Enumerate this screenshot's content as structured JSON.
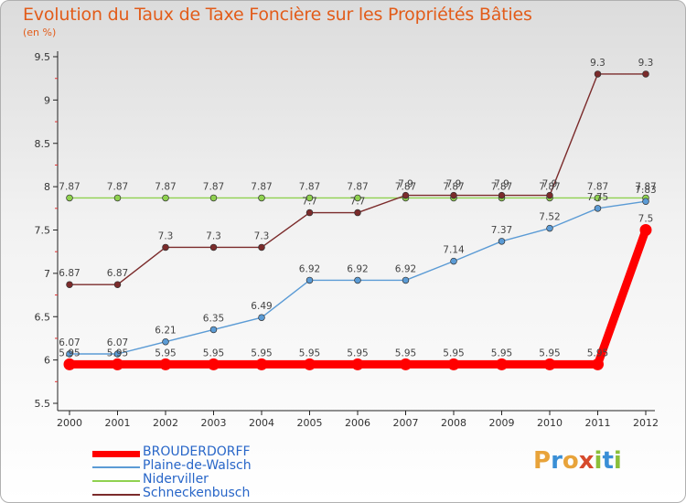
{
  "title": "Evolution du Taux de Taxe Foncière sur les Propriétés Bâties",
  "subtitle": "(en %)",
  "logo": {
    "letters": [
      "P",
      "r",
      "o",
      "x",
      "i",
      "t",
      "i"
    ],
    "colors": [
      "#e8a33a",
      "#3a8fd6",
      "#e8a33a",
      "#d64a2c",
      "#8bbf3a",
      "#3a8fd6",
      "#8bbf3a"
    ]
  },
  "chart_data": {
    "type": "line",
    "title": "Evolution du Taux de Taxe Foncière sur les Propriétés Bâties",
    "ylabel": "(en %)",
    "xlabel": "",
    "categories": [
      "2000",
      "2001",
      "2002",
      "2003",
      "2004",
      "2005",
      "2006",
      "2007",
      "2008",
      "2009",
      "2010",
      "2011",
      "2012"
    ],
    "ylim": [
      5.5,
      9.5
    ],
    "yticks": [
      "5.5",
      "6",
      "6.5",
      "7",
      "7.5",
      "8",
      "8.5",
      "9",
      "9.5"
    ],
    "series": [
      {
        "name": "BROUDERDORFF",
        "color": "#ff0000",
        "values": [
          5.95,
          5.95,
          5.95,
          5.95,
          5.95,
          5.95,
          5.95,
          5.95,
          5.95,
          5.95,
          5.95,
          5.95,
          7.5
        ],
        "labels": [
          "5.95",
          "5.95",
          "5.95",
          "5.95",
          "5.95",
          "5.95",
          "5.95",
          "5.95",
          "5.95",
          "5.95",
          "5.95",
          "5.95",
          "7.5"
        ]
      },
      {
        "name": "Plaine-de-Walsch",
        "color": "#5b9bd5",
        "values": [
          6.07,
          6.07,
          6.21,
          6.35,
          6.49,
          6.92,
          6.92,
          6.92,
          7.14,
          7.37,
          7.52,
          7.75,
          7.83
        ],
        "labels": [
          "6.07",
          "6.07",
          "6.21",
          "6.35",
          "6.49",
          "6.92",
          "6.92",
          "6.92",
          "7.14",
          "7.37",
          "7.52",
          "7.75",
          "7.83"
        ]
      },
      {
        "name": "Niderviller",
        "color": "#8fd14f",
        "values": [
          7.87,
          7.87,
          7.87,
          7.87,
          7.87,
          7.87,
          7.87,
          7.87,
          7.87,
          7.87,
          7.87,
          7.87,
          7.87
        ],
        "labels": [
          "7.87",
          "7.87",
          "7.87",
          "7.87",
          "7.87",
          "7.87",
          "7.87",
          "7.87",
          "7.87",
          "7.87",
          "7.87",
          "7.87",
          "7.87"
        ]
      },
      {
        "name": "Schneckenbusch",
        "color": "#7b2b2b",
        "values": [
          6.87,
          6.87,
          7.3,
          7.3,
          7.3,
          7.7,
          7.7,
          7.9,
          7.9,
          7.9,
          7.9,
          9.3,
          9.3
        ],
        "labels": [
          "6.87",
          "6.87",
          "7.3",
          "7.3",
          "7.3",
          "7.7",
          "7.7",
          "7.9",
          "7.9",
          "7.9",
          "7.9",
          "9.3",
          "9.3"
        ]
      }
    ],
    "legend_position": "bottom-left",
    "grid": false
  }
}
